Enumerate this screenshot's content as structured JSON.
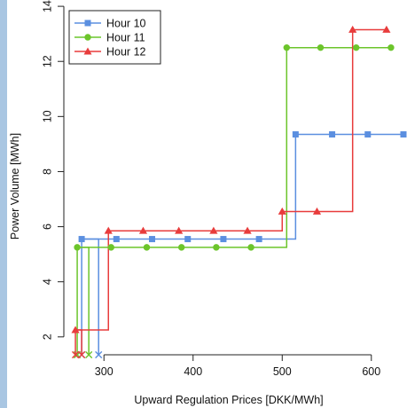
{
  "chart_data": {
    "type": "line",
    "step": true,
    "xlabel": "Upward Regulation Prices [DKK/MWh]",
    "ylabel": "Power Volume [MWh]",
    "xlim": [
      255,
      640
    ],
    "ylim": [
      1.35,
      14.1
    ],
    "xticks": [
      300,
      400,
      500,
      600
    ],
    "yticks": [
      2,
      4,
      6,
      8,
      10,
      12,
      14
    ],
    "grid": false,
    "legend_position": "top-left",
    "series": [
      {
        "name": "Hour 10",
        "color": "#5b8fe0",
        "marker": "square",
        "x": [
          275,
          314,
          354,
          394,
          434,
          474,
          515,
          556,
          596,
          636
        ],
        "y": [
          5.55,
          5.55,
          5.55,
          5.55,
          5.55,
          5.55,
          9.35,
          9.35,
          9.35,
          9.35
        ]
      },
      {
        "name": "Hour 11",
        "color": "#6cc52b",
        "marker": "circle",
        "x": [
          270,
          308,
          348,
          387,
          426,
          465,
          505,
          543,
          583,
          622
        ],
        "y": [
          5.25,
          5.25,
          5.25,
          5.25,
          5.25,
          5.25,
          12.5,
          12.5,
          12.5,
          12.5
        ]
      },
      {
        "name": "Hour 12",
        "color": "#e83c3c",
        "marker": "triangle",
        "x": [
          268,
          305,
          344,
          384,
          423,
          461,
          500,
          539,
          579,
          617
        ],
        "y": [
          2.25,
          5.85,
          5.85,
          5.85,
          5.85,
          5.85,
          6.55,
          6.55,
          13.15,
          13.15
        ]
      }
    ],
    "lower_segments": [
      {
        "series": "Hour 10",
        "x_start": 275,
        "x_end": 294,
        "y_top": 5.55,
        "y_bottom": 1.35
      },
      {
        "series": "Hour 11",
        "x_start": 270,
        "x_end": 283,
        "y_top": 5.25,
        "y_bottom": 1.35
      },
      {
        "series": "Hour 12",
        "x_start": 268,
        "x_end": 275,
        "y_top": 2.25,
        "y_bottom": 1.35
      }
    ]
  }
}
